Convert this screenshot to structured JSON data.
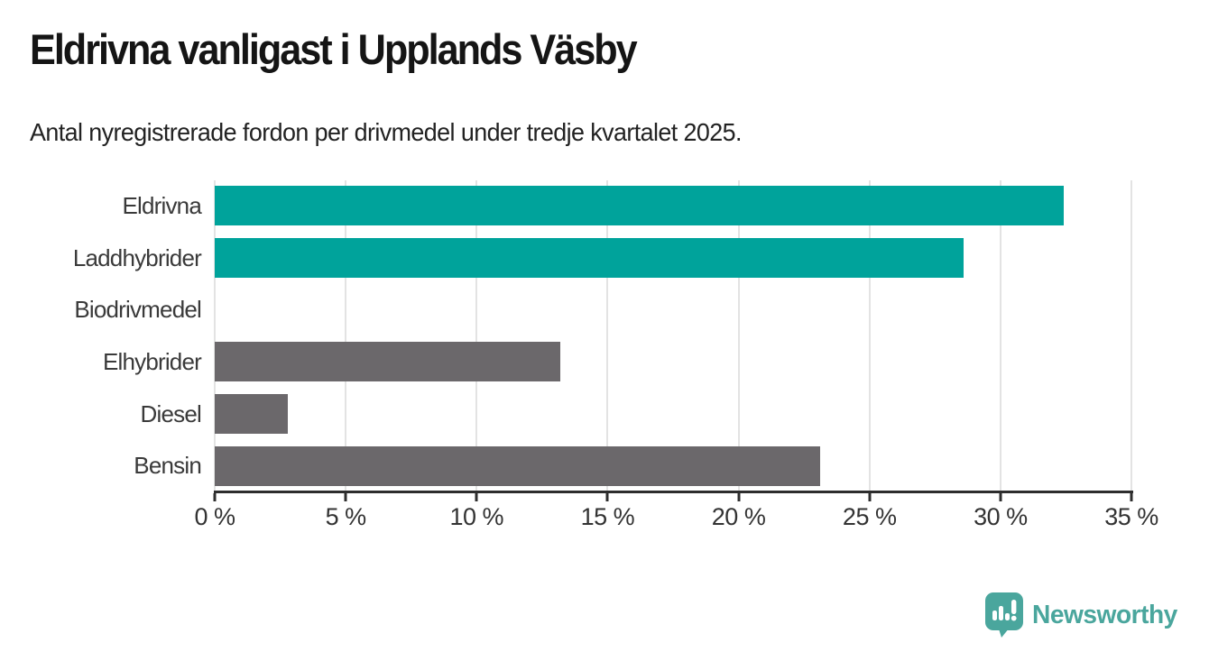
{
  "header": {
    "title": "Eldrivna vanligast i Upplands Väsby",
    "subtitle": "Antal nyregistrerade fordon per drivmedel under tredje kvartalet 2025."
  },
  "chart_data": {
    "type": "bar",
    "orientation": "horizontal",
    "title": "Eldrivna vanligast i Upplands Väsby",
    "subtitle": "Antal nyregistrerade fordon per drivmedel under tredje kvartalet 2025.",
    "categories": [
      "Eldrivna",
      "Laddhybrider",
      "Biodrivmedel",
      "Elhybrider",
      "Diesel",
      "Bensin"
    ],
    "values": [
      32.4,
      28.6,
      0,
      13.2,
      2.8,
      23.1
    ],
    "unit": "%",
    "xlabel": "",
    "ylabel": "",
    "xlim": [
      0,
      35
    ],
    "x_ticks": [
      0,
      5,
      10,
      15,
      20,
      25,
      30,
      35
    ],
    "x_tick_labels": [
      "0 %",
      "5 %",
      "10 %",
      "15 %",
      "20 %",
      "25 %",
      "30 %",
      "35 %"
    ],
    "bar_colors": [
      "#00a39b",
      "#00a39b",
      "#6b686b",
      "#6b686b",
      "#6b686b",
      "#6b686b"
    ],
    "highlight_color": "#00a39b",
    "default_color": "#6b686b",
    "grid": true,
    "legend": false
  },
  "footer": {
    "brand": "Newsworthy",
    "brand_color": "#4aa69d",
    "logo_icon": "bar-chart-speech-bubble-icon"
  },
  "colors": {
    "background": "#ffffff",
    "axis": "#2d2d2d",
    "gridline": "#e3e3e3",
    "title_text": "#151515",
    "subtitle_text": "#222222",
    "label_text": "#3a3a3a",
    "tick_text": "#333333"
  }
}
